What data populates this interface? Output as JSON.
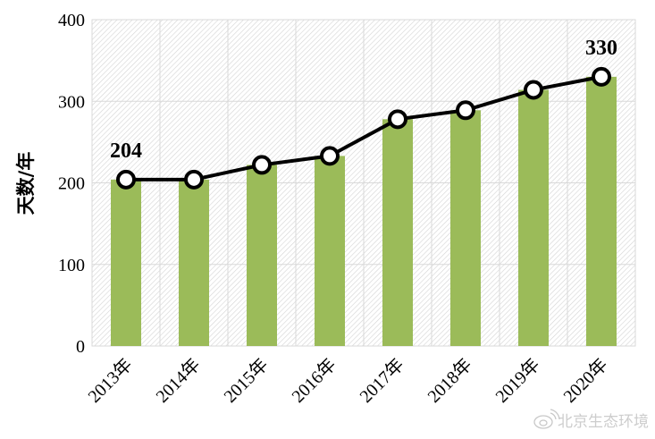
{
  "chart_data": {
    "type": "bar",
    "categories": [
      "2013年",
      "2014年",
      "2015年",
      "2016年",
      "2017年",
      "2018年",
      "2019年",
      "2020年"
    ],
    "series": [
      {
        "type": "bar",
        "values": [
          204,
          204,
          222,
          233,
          278,
          289,
          314,
          330
        ],
        "color": "#9bbb59"
      },
      {
        "type": "line",
        "values": [
          204,
          204,
          222,
          233,
          278,
          289,
          314,
          330
        ],
        "color": "#000000",
        "marker": "hollow-circle"
      }
    ],
    "data_labels": [
      {
        "index": 0,
        "text": "204"
      },
      {
        "index": 7,
        "text": "330"
      }
    ],
    "ylabel": "天数/年",
    "ylim": [
      0,
      400
    ],
    "yticks": [
      "0",
      "100",
      "200",
      "300",
      "400"
    ],
    "grid": true,
    "background": "diagonal-hatch"
  },
  "watermark": {
    "text": "北京生态环境",
    "icon": "weibo-icon"
  }
}
